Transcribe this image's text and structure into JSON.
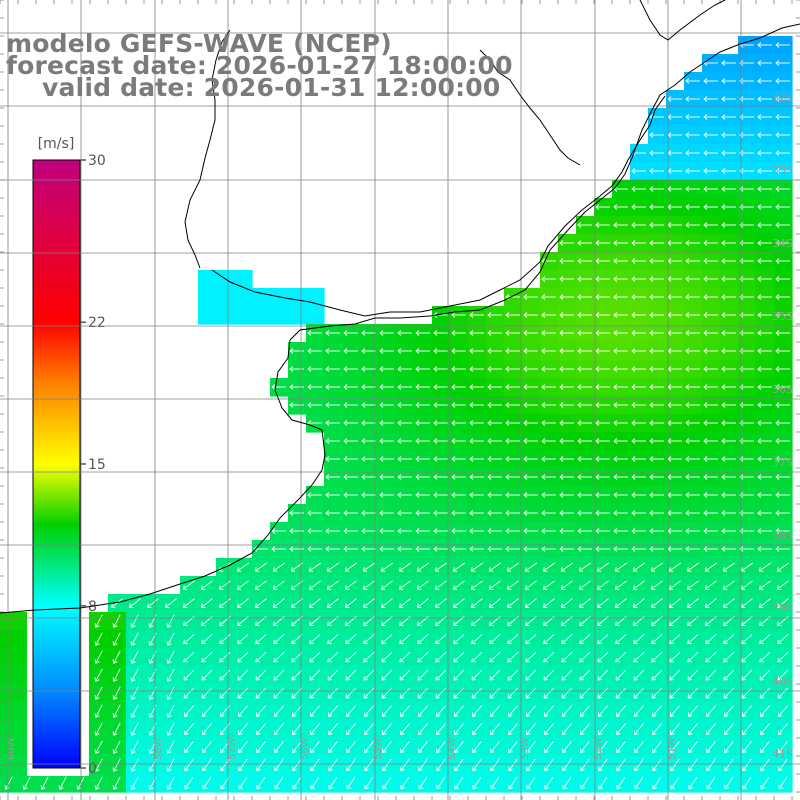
{
  "title": {
    "model": "modelo GEFS-WAVE (NCEP)",
    "forecast": "forecast date: 2026-01-27 18:00:00",
    "valid": "valid date: 2026-01-31 12:00:00"
  },
  "colorbar": {
    "unit": "[m/s]",
    "ticks": [
      {
        "value": 30,
        "label": "30"
      },
      {
        "value": 22,
        "label": "22"
      },
      {
        "value": 15,
        "label": "15"
      },
      {
        "value": 8,
        "label": "8"
      },
      {
        "value": 0,
        "label": "0"
      }
    ],
    "range": [
      0,
      30
    ],
    "colors": [
      "#0000ff",
      "#0090ff",
      "#00ffff",
      "#00d000",
      "#ffff00",
      "#ff8000",
      "#ff0000",
      "#c00080"
    ]
  },
  "lat_labels": [
    "32S",
    "33S",
    "34S",
    "35S",
    "36S",
    "37S",
    "38S",
    "39S",
    "40S",
    "41S"
  ],
  "lon_labels": [
    "60W",
    "59W",
    "58W",
    "57W",
    "56W",
    "55W",
    "54W",
    "53W",
    "52W",
    "51W"
  ],
  "field": {
    "description_values_ms": "wind speed grid 10-13 m/s offshore, 5-7 near north-east coast",
    "arrow_direction": "from-east"
  }
}
